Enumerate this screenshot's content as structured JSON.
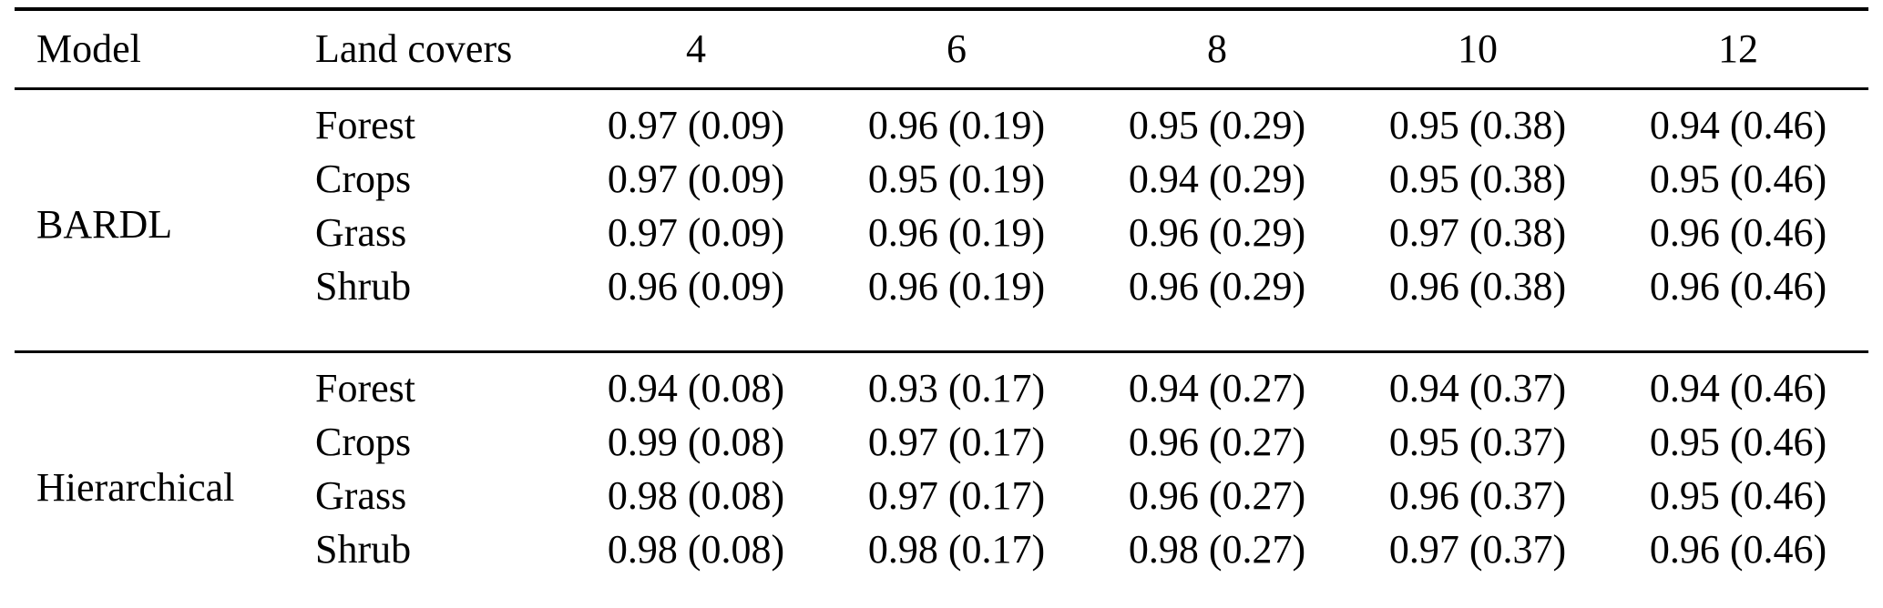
{
  "table": {
    "columns": [
      "Model",
      "Land covers",
      "4",
      "6",
      "8",
      "10",
      "12"
    ],
    "sections": [
      {
        "model": "BARDL",
        "rows": [
          {
            "land_cover": "Forest",
            "values": [
              "0.97 (0.09)",
              "0.96 (0.19)",
              "0.95 (0.29)",
              "0.95 (0.38)",
              "0.94 (0.46)"
            ]
          },
          {
            "land_cover": "Crops",
            "values": [
              "0.97 (0.09)",
              "0.95 (0.19)",
              "0.94 (0.29)",
              "0.95 (0.38)",
              "0.95 (0.46)"
            ]
          },
          {
            "land_cover": "Grass",
            "values": [
              "0.97 (0.09)",
              "0.96 (0.19)",
              "0.96 (0.29)",
              "0.97 (0.38)",
              "0.96 (0.46)"
            ]
          },
          {
            "land_cover": "Shrub",
            "values": [
              "0.96 (0.09)",
              "0.96 (0.19)",
              "0.96 (0.29)",
              "0.96 (0.38)",
              "0.96 (0.46)"
            ]
          }
        ]
      },
      {
        "model": "Hierarchical",
        "rows": [
          {
            "land_cover": "Forest",
            "values": [
              "0.94 (0.08)",
              "0.93 (0.17)",
              "0.94 (0.27)",
              "0.94 (0.37)",
              "0.94 (0.46)"
            ]
          },
          {
            "land_cover": "Crops",
            "values": [
              "0.99 (0.08)",
              "0.97 (0.17)",
              "0.96 (0.27)",
              "0.95 (0.37)",
              "0.95 (0.46)"
            ]
          },
          {
            "land_cover": "Grass",
            "values": [
              "0.98 (0.08)",
              "0.97 (0.17)",
              "0.96 (0.27)",
              "0.96 (0.37)",
              "0.95 (0.46)"
            ]
          },
          {
            "land_cover": "Shrub",
            "values": [
              "0.98 (0.08)",
              "0.98 (0.17)",
              "0.98 (0.27)",
              "0.97 (0.37)",
              "0.96 (0.46)"
            ]
          }
        ]
      }
    ]
  }
}
